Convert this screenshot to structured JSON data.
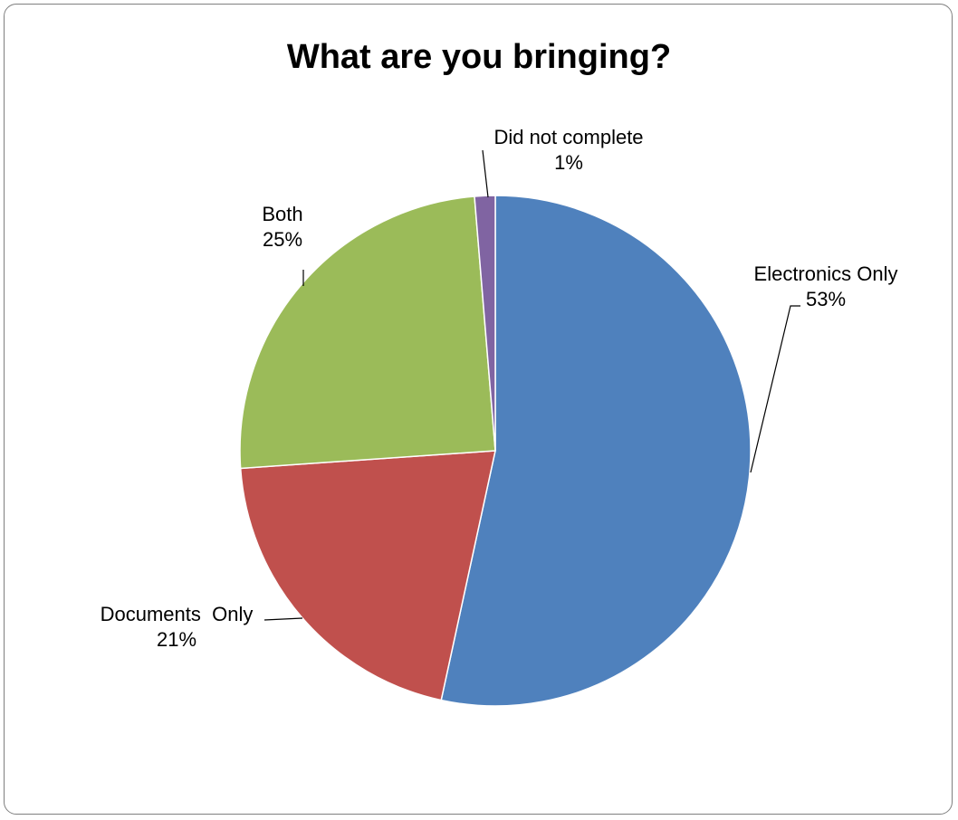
{
  "chart_data": {
    "type": "pie",
    "title": "What are you bringing?",
    "slices": [
      {
        "name": "Electronics Only",
        "value_label": "53%",
        "value": 53.4,
        "color": "#4F81BD"
      },
      {
        "name": "Documents  Only",
        "value_label": "21%",
        "value": 20.5,
        "color": "#C0504D"
      },
      {
        "name": "Both",
        "value_label": "25%",
        "value": 24.8,
        "color": "#9BBB59"
      },
      {
        "name": "Did not complete",
        "value_label": "1%",
        "value": 1.3,
        "color": "#8064A2"
      }
    ],
    "start_angle_deg": 0,
    "direction": "clockwise",
    "legend": "none"
  }
}
